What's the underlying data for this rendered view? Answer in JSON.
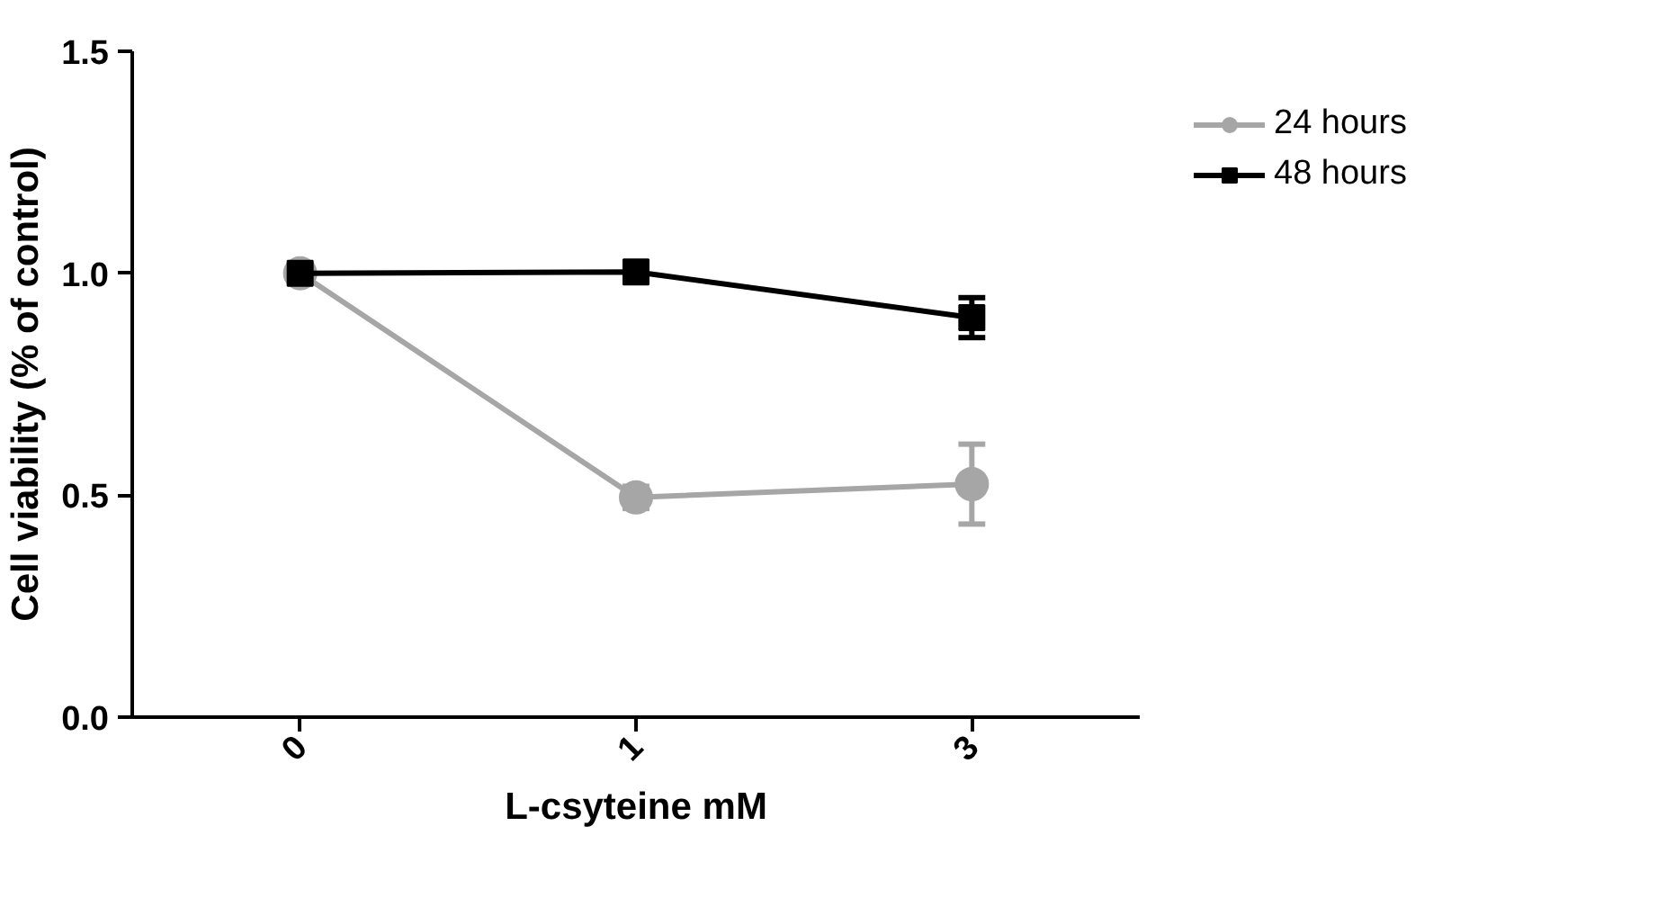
{
  "chart_data": {
    "type": "line",
    "xlabel": "L-csyteine mM",
    "ylabel": "Cell viability (% of control)",
    "categories": [
      "0",
      "1",
      "3"
    ],
    "ylim": [
      0,
      1.5
    ],
    "yticks": [
      {
        "value": 0,
        "label": "0.0"
      },
      {
        "value": 0.5,
        "label": "0.5"
      },
      {
        "value": 1,
        "label": "1.0"
      },
      {
        "value": 1.5,
        "label": "1.5"
      }
    ],
    "grid": false,
    "legend": "right",
    "line_style": "solid",
    "series": [
      {
        "name": "24 hours",
        "color": "#a6a6a6",
        "marker": "circle",
        "values": [
          1.0,
          0.495,
          0.525
        ],
        "errors": [
          null,
          0.025,
          0.09
        ]
      },
      {
        "name": "48 hours",
        "color": "#000000",
        "marker": "square",
        "values": [
          1.0,
          1.003,
          0.9
        ],
        "errors": [
          null,
          0.015,
          0.045
        ]
      }
    ]
  }
}
